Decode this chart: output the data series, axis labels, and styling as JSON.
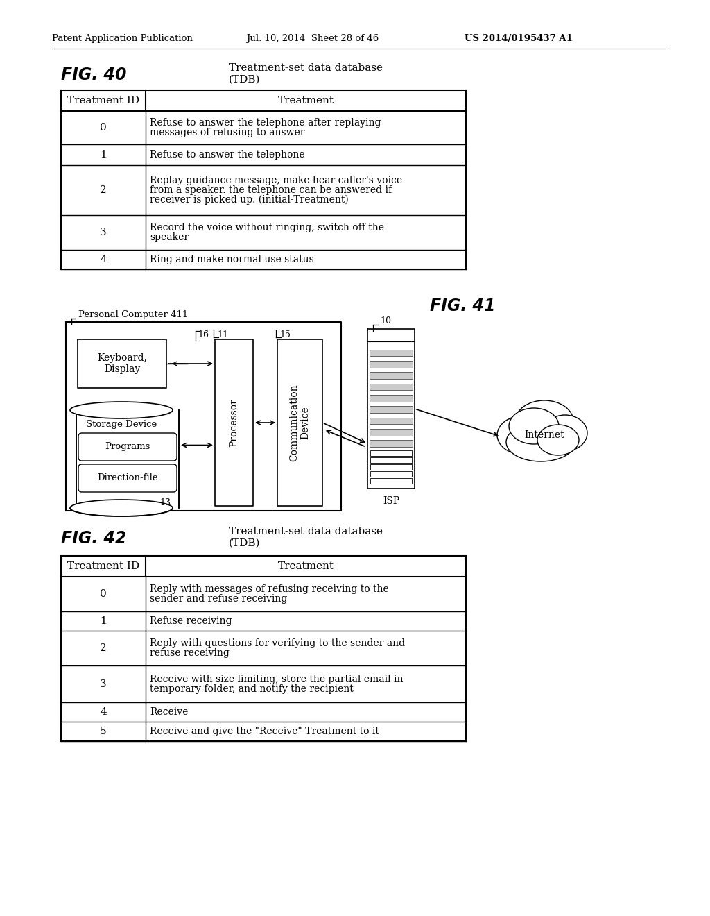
{
  "header_text": "Patent Application Publication",
  "header_date": "Jul. 10, 2014  Sheet 28 of 46",
  "header_patent": "US 2014/0195437 A1",
  "fig40_label": "FIG. 40",
  "fig40_title_line1": "Treatment-set data database",
  "fig40_title_line2": "(TDB)",
  "fig40_col1_header": "Treatment ID",
  "fig40_col2_header": "Treatment",
  "fig40_rows": [
    [
      "0",
      "Refuse to answer the telephone after replaying\nmessages of refusing to answer"
    ],
    [
      "1",
      "Refuse to answer the telephone"
    ],
    [
      "2",
      "Replay guidance message, make hear caller's voice\nfrom a speaker. the telephone can be answered if\nreceiver is picked up. (initial-Treatment)"
    ],
    [
      "3",
      "Record the voice without ringing, switch off the\nspeaker"
    ],
    [
      "4",
      "Ring and make normal use status"
    ]
  ],
  "fig41_label": "FIG. 41",
  "fig41_pc_label": "Personal Computer 411",
  "fig41_num16": "16",
  "fig41_num11": "11",
  "fig41_num15": "15",
  "fig41_num10": "10",
  "fig41_num13": "13",
  "fig41_keyboard": "Keyboard,\nDisplay",
  "fig41_storage": "Storage Device",
  "fig41_programs": "Programs",
  "fig41_direction": "Direction-file",
  "fig41_processor": "Processor",
  "fig41_comm": "Communication\nDevice",
  "fig41_isp": "ISP",
  "fig41_internet": "Internet",
  "fig42_label": "FIG. 42",
  "fig42_title_line1": "Treatment-set data database",
  "fig42_title_line2": "(TDB)",
  "fig42_col1_header": "Treatment ID",
  "fig42_col2_header": "Treatment",
  "fig42_rows": [
    [
      "0",
      "Reply with messages of refusing receiving to the\nsender and refuse receiving"
    ],
    [
      "1",
      "Refuse receiving"
    ],
    [
      "2",
      "Reply with questions for verifying to the sender and\nrefuse receiving"
    ],
    [
      "3",
      "Receive with size limiting, store the partial email in\ntemporary folder, and notify the recipient"
    ],
    [
      "4",
      "Receive"
    ],
    [
      "5",
      "Receive and give the \"Receive\" Treatment to it"
    ]
  ],
  "bg_color": "#ffffff"
}
